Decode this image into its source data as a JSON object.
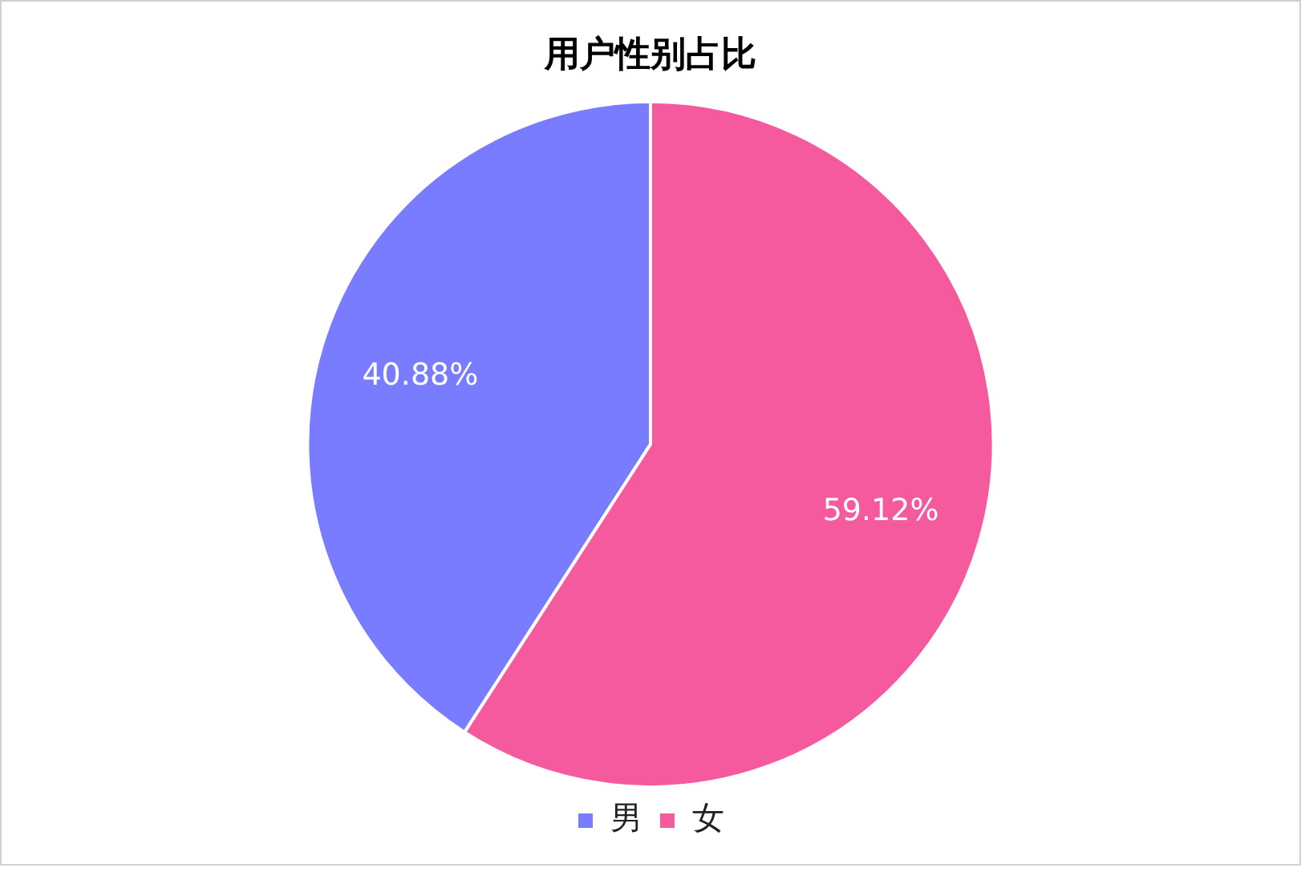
{
  "chart_data": {
    "type": "pie",
    "title": "用户性别占比",
    "categories": [
      "男",
      "女"
    ],
    "values": [
      40.88,
      59.12
    ],
    "value_labels": [
      "40.88%",
      "59.12%"
    ],
    "colors": [
      "#7a7cff",
      "#f55a9e"
    ],
    "legend": "bottom"
  }
}
